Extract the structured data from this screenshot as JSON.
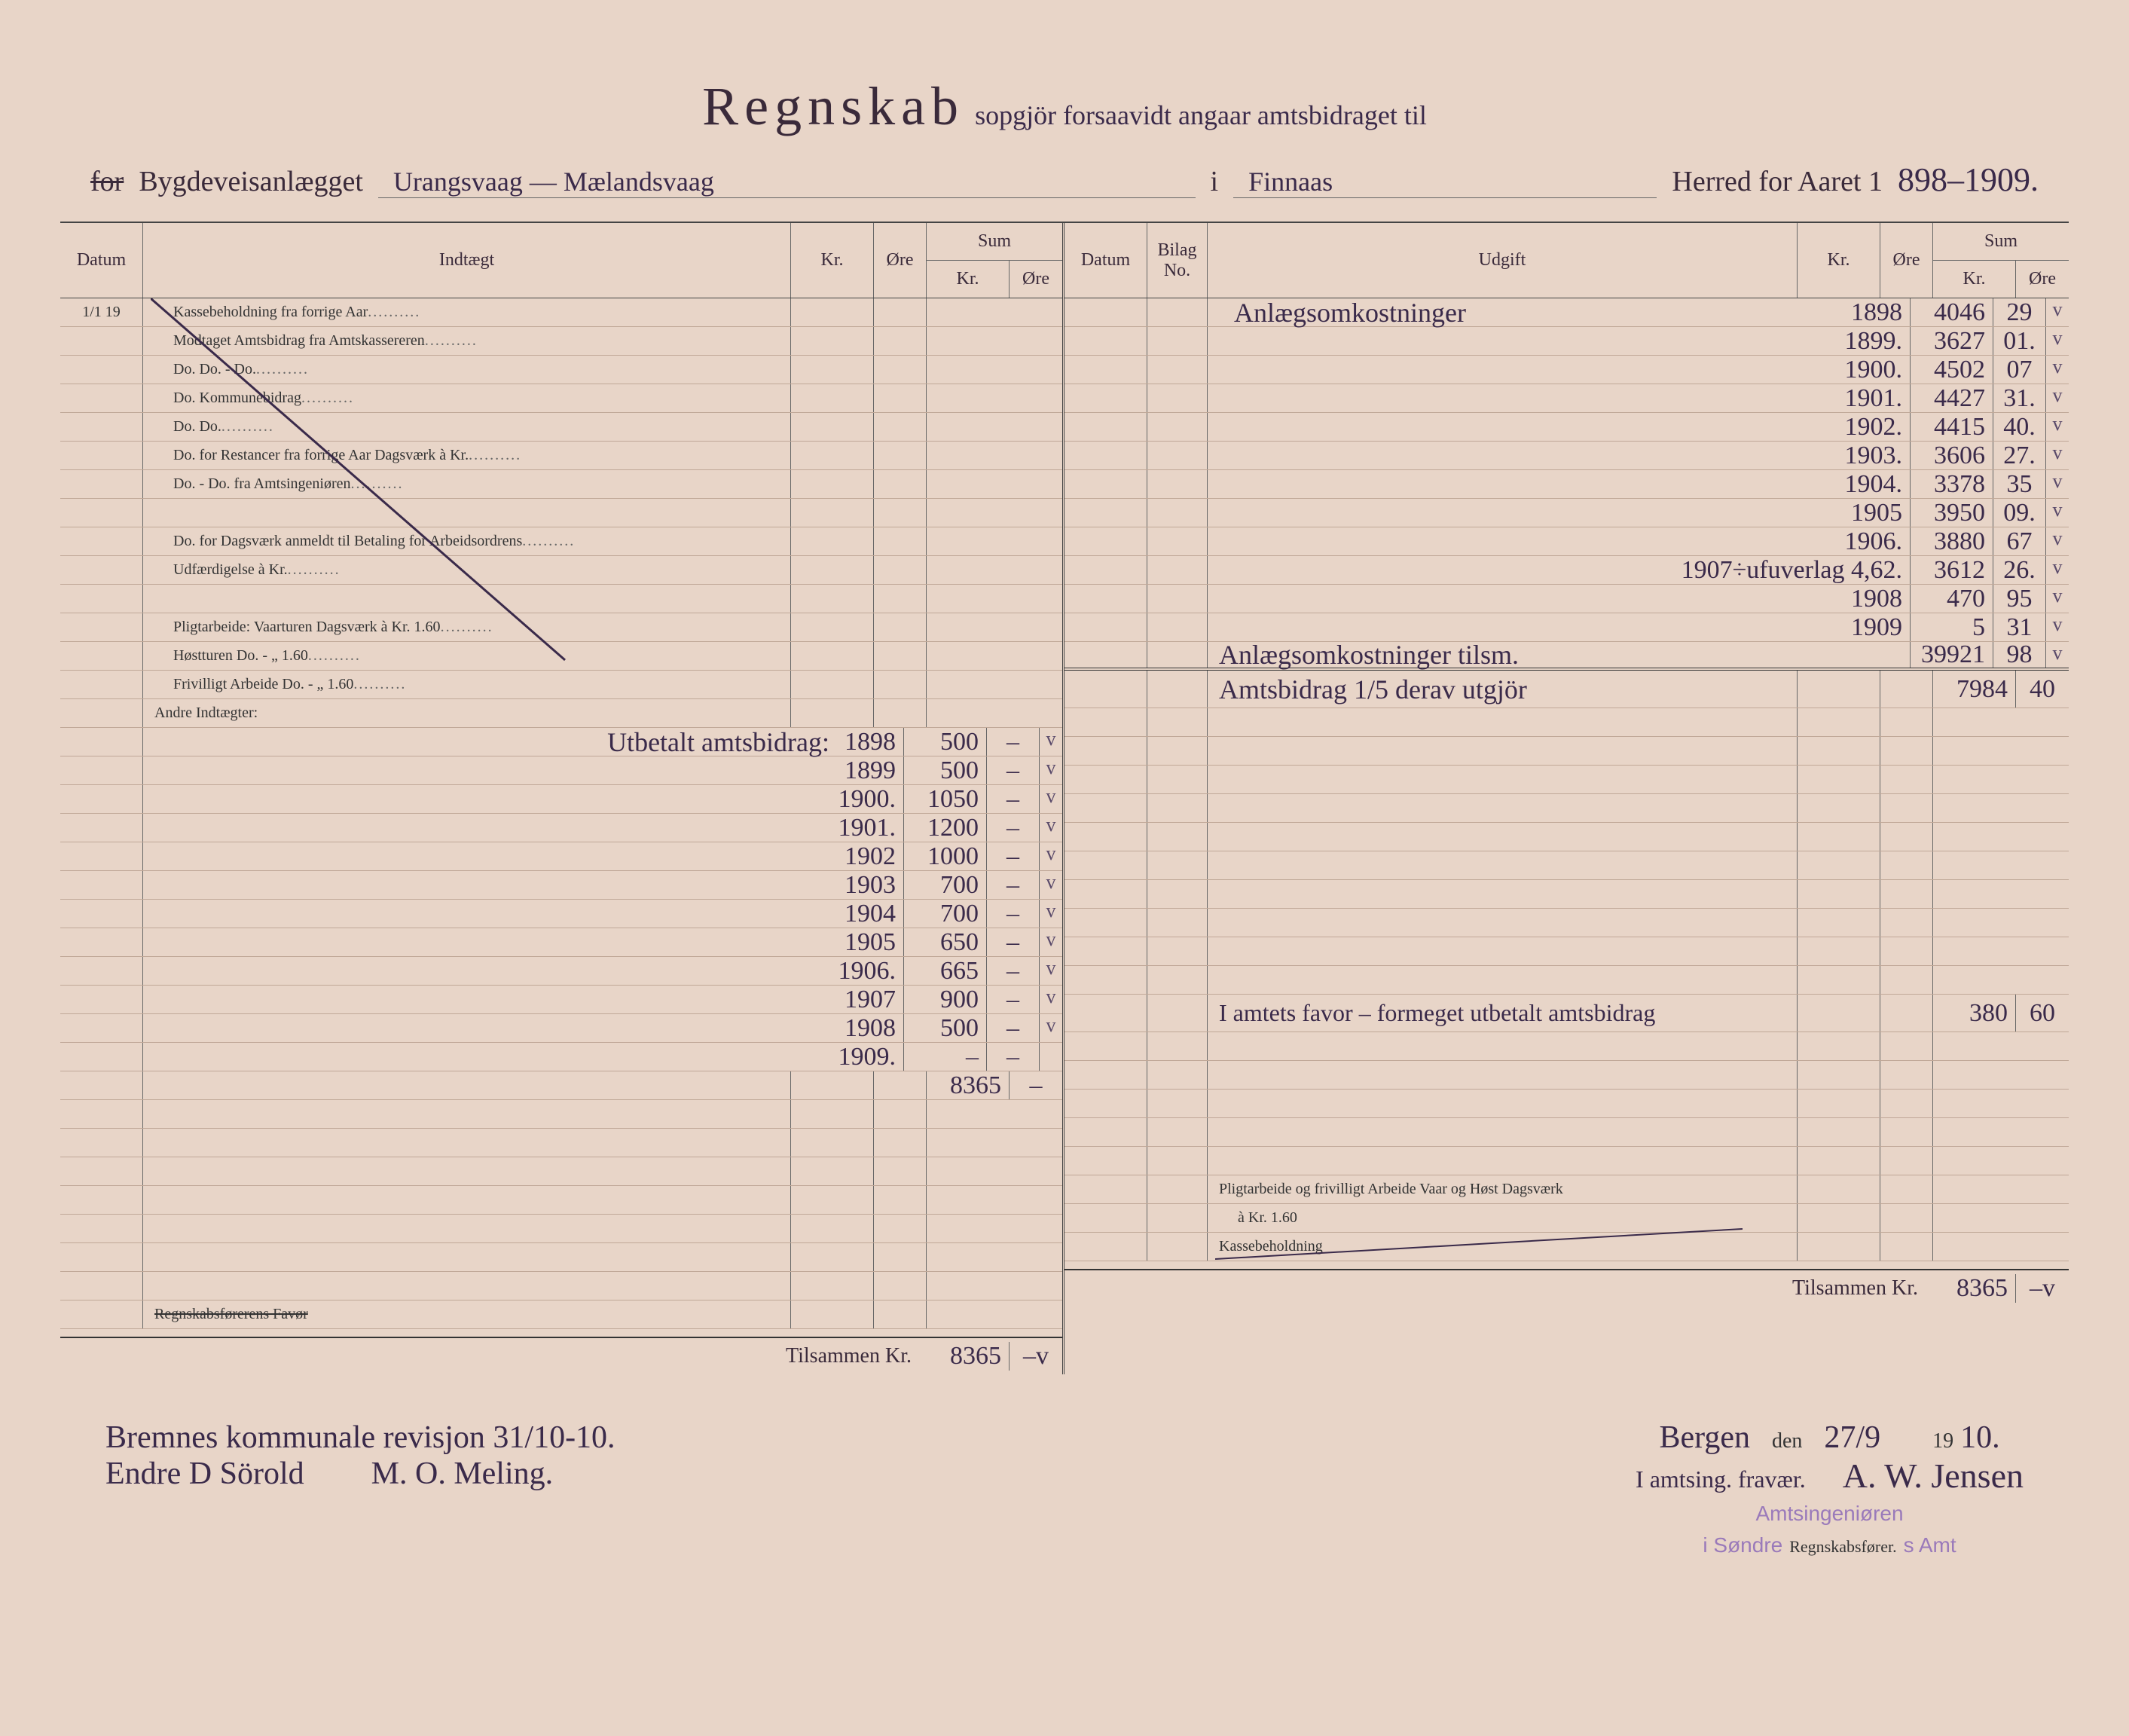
{
  "title": {
    "main": "Regnskab",
    "script_suffix": "sopgjör forsaavidt angaar amtsbidraget til"
  },
  "subtitle": {
    "for_struck": "for",
    "printed1": "Bygdeveisanlægget",
    "route": "Urangsvaag — Mælandsvaag",
    "i": "i",
    "herred": "Finnaas",
    "printed2": "Herred for Aaret 1",
    "years": "898–1909."
  },
  "headers": {
    "datum": "Datum",
    "indtaegt": "Indtægt",
    "kr": "Kr.",
    "ore": "Øre",
    "sum": "Sum",
    "bilag": "Bilag",
    "no": "No.",
    "udgift": "Udgift"
  },
  "left_printed": [
    "Kassebeholdning fra forrige Aar",
    "Modtaget Amtsbidrag fra Amtskassereren",
    "Do.      Do.      -      Do.",
    "Do.   Kommunebidrag",
    "Do.      Do.",
    "Do.   for Restancer fra forrige Aar        Dagsværk à Kr.",
    "Do.      -      Do.   fra Amtsingeniøren",
    "",
    "Do.   for        Dagsværk anmeldt til Betaling for Arbeidsordrens",
    "        Udfærdigelse à Kr.",
    "",
    "Pligtarbeide: Vaarturen        Dagsværk à Kr. 1.60",
    "                    Høstturen        Do.    -  „  1.60",
    "Frivilligt Arbeide                Do.    -  „  1.60",
    "Andre Indtægter:"
  ],
  "left_date": "1/1 19",
  "left_hand_title": "Utbetalt amtsbidrag:",
  "left_entries": [
    {
      "year": "1898",
      "kr": "500",
      "ore": "–",
      "check": "v"
    },
    {
      "year": "1899",
      "kr": "500",
      "ore": "–",
      "check": "v"
    },
    {
      "year": "1900.",
      "kr": "1050",
      "ore": "–",
      "check": "v"
    },
    {
      "year": "1901.",
      "kr": "1200",
      "ore": "–",
      "check": "v"
    },
    {
      "year": "1902",
      "kr": "1000",
      "ore": "–",
      "check": "v"
    },
    {
      "year": "1903",
      "kr": "700",
      "ore": "–",
      "check": "v"
    },
    {
      "year": "1904",
      "kr": "700",
      "ore": "–",
      "check": "v"
    },
    {
      "year": "1905",
      "kr": "650",
      "ore": "–",
      "check": "v"
    },
    {
      "year": "1906.",
      "kr": "665",
      "ore": "–",
      "check": "v"
    },
    {
      "year": "1907",
      "kr": "900",
      "ore": "–",
      "check": "v"
    },
    {
      "year": "1908",
      "kr": "500",
      "ore": "–",
      "check": "v"
    },
    {
      "year": "1909.",
      "kr": "–",
      "ore": "–",
      "check": ""
    }
  ],
  "left_sum": {
    "kr": "8365",
    "ore": "–"
  },
  "left_footer_struck": "Regnskabsførerens Favør",
  "left_total_label": "Tilsammen Kr.",
  "left_total": {
    "kr": "8365",
    "ore": "–v"
  },
  "right_hand_title": "Anlægsomkostninger",
  "right_entries": [
    {
      "year": "1898",
      "kr": "4046",
      "ore": "29",
      "check": "v"
    },
    {
      "year": "1899.",
      "kr": "3627",
      "ore": "01.",
      "check": "v"
    },
    {
      "year": "1900.",
      "kr": "4502",
      "ore": "07",
      "check": "v"
    },
    {
      "year": "1901.",
      "kr": "4427",
      "ore": "31.",
      "check": "v"
    },
    {
      "year": "1902.",
      "kr": "4415",
      "ore": "40.",
      "check": "v"
    },
    {
      "year": "1903.",
      "kr": "3606",
      "ore": "27.",
      "check": "v"
    },
    {
      "year": "1904.",
      "kr": "3378",
      "ore": "35",
      "check": "v"
    },
    {
      "year": "1905",
      "kr": "3950",
      "ore": "09.",
      "check": "v"
    },
    {
      "year": "1906.",
      "kr": "3880",
      "ore": "67",
      "check": "v"
    },
    {
      "year": "1907÷ufuverlag 4,62.",
      "kr": "3612",
      "ore": "26.",
      "check": "v"
    },
    {
      "year": "1908",
      "kr": "470",
      "ore": "95",
      "check": "v"
    },
    {
      "year": "1909",
      "kr": "5",
      "ore": "31",
      "check": "v"
    }
  ],
  "right_subtotal_label": "Anlægsomkostninger tilsm.",
  "right_subtotal": {
    "kr": "39921",
    "ore": "98",
    "check": "v"
  },
  "right_amts_label": "Amtsbidrag 1/5 derav utgjör",
  "right_amts": {
    "kr": "7984",
    "ore": "40",
    "check": "v"
  },
  "right_favor_label": "I amtets favor – formeget utbetalt amtsbidrag",
  "right_favor": {
    "kr": "380",
    "ore": "60",
    "check": "v"
  },
  "right_printed_footer1": "Pligtarbeide og frivilligt Arbeide Vaar og Høst        Dagsværk",
  "right_printed_footer1b": "à Kr. 1.60",
  "right_printed_footer2": "Kassebeholdning",
  "right_total_label": "Tilsammen Kr.",
  "right_total": {
    "kr": "8365",
    "ore": "–v"
  },
  "footer_left": {
    "line1": "Bremnes kommunale revisjon 31/10-10.",
    "sig1": "Endre D Sörold",
    "sig2": "M. O. Meling."
  },
  "footer_right": {
    "place": "Bergen",
    "den": "den",
    "date": "27/9",
    "year_printed": "19",
    "year_hand": "10.",
    "note": "I amtsing. fravær.",
    "sig": "A. W. Jensen",
    "stamp1": "Amtsingeniøren",
    "stamp2": "i Søndre",
    "role": "Regnskabsfører.",
    "stamp3": "s Amt"
  },
  "colors": {
    "paper": "#e8d5c8",
    "ink": "#3a2a3a",
    "hand_ink": "#3a2a4a",
    "stamp": "#9a7aba",
    "rule": "#c0a898"
  }
}
